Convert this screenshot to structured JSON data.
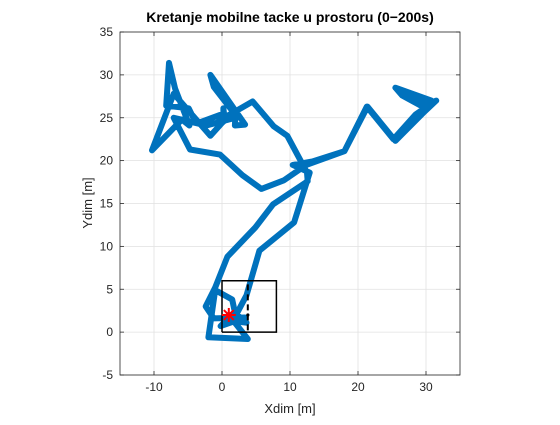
{
  "chart_data": {
    "type": "scatter",
    "title": "Kretanje mobilne tacke u prostoru (0−200s)",
    "xlabel": "Xdim [m]",
    "ylabel": "Ydim [m]",
    "xlim": [
      -15,
      35
    ],
    "ylim": [
      -5,
      35
    ],
    "xticks": [
      -10,
      0,
      10,
      20,
      30
    ],
    "yticks": [
      -5,
      0,
      5,
      10,
      15,
      20,
      25,
      30,
      35
    ],
    "xtick_labels": [
      "-10",
      "0",
      "10",
      "20",
      "30"
    ],
    "ytick_labels": [
      "-5",
      "0",
      "5",
      "10",
      "15",
      "20",
      "25",
      "30",
      "35"
    ],
    "grid": true,
    "legend": "none",
    "trajectory_color": "#0072BD",
    "marker_color": "#FF0000",
    "box_color": "#000000",
    "series": [
      {
        "style": "thick-line",
        "x": [
          1.0,
          3.8,
          -2.0,
          -1.0,
          1.5,
          2.0,
          3.6,
          5.5,
          10.6,
          12.9,
          10.4,
          13.3,
          18.0,
          21.3,
          25.2,
          28.5,
          30.7,
          25.5,
          30.8,
          29.5,
          25.5,
          26.5,
          29.5,
          31.5,
          29.5,
          25.5,
          21.4,
          18.0,
          12.4,
          9.1,
          5.8,
          3.0,
          -0.3,
          -4.7,
          -7.1,
          -2.3,
          1.5,
          2.2,
          -1.2,
          -1.7,
          3.4,
          1.9,
          2.0,
          0.0,
          -1.7,
          -7.1,
          -10.3,
          -5.9,
          -4.8,
          -6.9,
          -7.8,
          -8.2,
          -4.9,
          -4.2,
          -3.5,
          0.3,
          0.2,
          0.2,
          -0.4,
          2.1,
          4.5,
          7.6,
          9.6,
          12.5,
          12.6,
          7.5,
          4.9,
          0.8,
          -1.0,
          -2.4,
          -1.2,
          3.4,
          -0.2,
          1.8,
          3.6,
          1.3,
          1.5
        ],
        "y": [
          2.0,
          -0.8,
          -0.6,
          4.9,
          3.8,
          1.9,
          4.3,
          9.5,
          12.8,
          18.6,
          19.5,
          19.9,
          21.1,
          26.3,
          22.5,
          25.4,
          26.6,
          28.5,
          27.0,
          26.5,
          28.5,
          27.6,
          26.3,
          27.0,
          25.5,
          22.3,
          26.3,
          21.1,
          19.5,
          17.7,
          16.7,
          18.3,
          20.7,
          21.3,
          25.0,
          24.1,
          24.9,
          25.1,
          28.6,
          30.0,
          24.2,
          24.1,
          25.8,
          24.4,
          22.9,
          27.8,
          21.2,
          24.8,
          24.1,
          28.4,
          31.4,
          26.4,
          26.1,
          25.0,
          24.4,
          25.5,
          26.1,
          25.3,
          24.7,
          25.8,
          26.9,
          24.0,
          22.9,
          18.6,
          17.6,
          14.9,
          12.2,
          8.8,
          5.2,
          3.0,
          1.6,
          1.7,
          0.7,
          2.3,
          1.1,
          1.3,
          2.0
        ]
      },
      {
        "style": "box",
        "x": [
          0,
          8,
          8,
          0,
          0
        ],
        "y": [
          0,
          0,
          6,
          6,
          0
        ]
      },
      {
        "style": "dashed-line",
        "x": [
          3.8,
          3.8
        ],
        "y": [
          0.2,
          5.8
        ]
      },
      {
        "style": "asterisk",
        "x": [
          1.0
        ],
        "y": [
          2.0
        ]
      },
      {
        "style": "small-marker",
        "x": [
          3.8
        ],
        "y": [
          2.0
        ]
      }
    ]
  }
}
